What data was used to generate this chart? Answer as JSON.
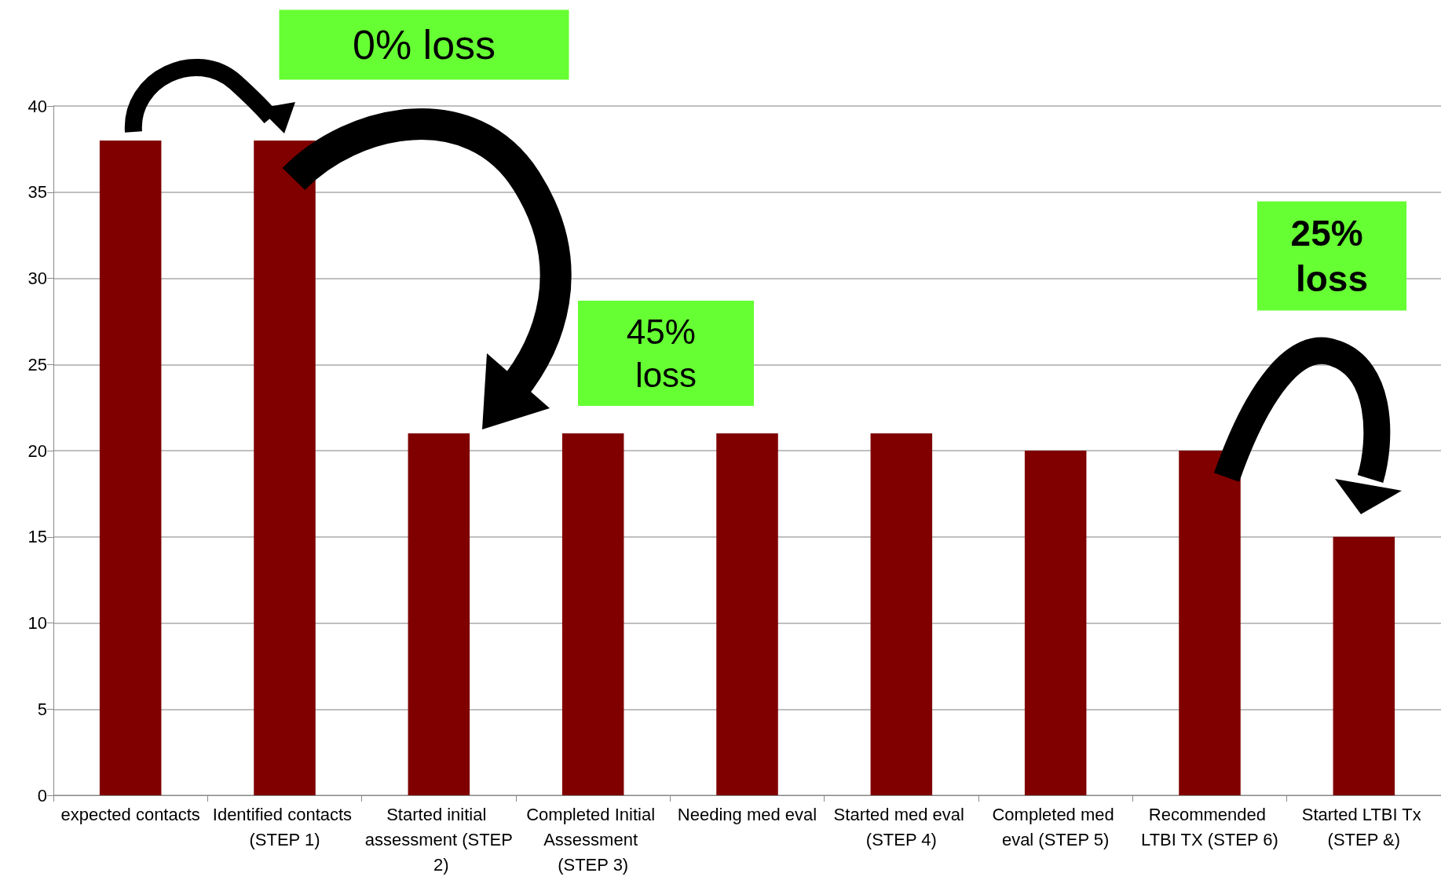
{
  "chart_data": {
    "type": "bar",
    "categories": [
      "expected contacts",
      "Identified contacts (STEP 1)",
      "Started initial assessment (STEP 2)",
      "Completed Initial Assessment (STEP 3)",
      "Needing med eval",
      "Started med eval (STEP 4)",
      "Completed med eval (STEP 5)",
      "Recommended LTBI TX (STEP 6)",
      "Started LTBI Tx (STEP &)"
    ],
    "values": [
      38,
      38,
      21,
      21,
      21,
      21,
      20,
      20,
      15
    ],
    "color": "#800000",
    "ylim": [
      0,
      40
    ],
    "yticks": [
      0,
      5,
      10,
      15,
      20,
      25,
      30,
      35,
      40
    ],
    "grid": "y",
    "annotations": [
      "0% loss",
      "45% loss",
      "25% loss"
    ]
  }
}
